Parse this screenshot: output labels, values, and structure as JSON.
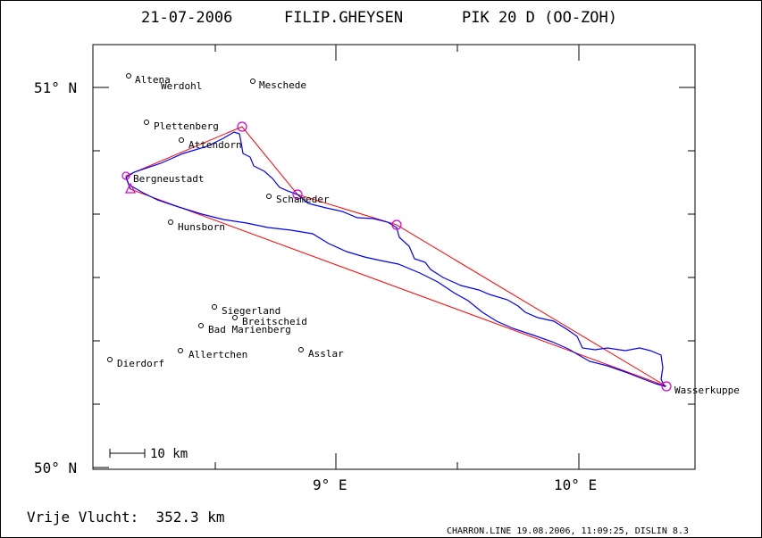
{
  "header": {
    "date": "21-07-2006",
    "pilot": "FILIP.GHEYSEN",
    "glider": "PIK 20 D (OO-ZOH)"
  },
  "axes": {
    "y_labels": [
      "51° N",
      "50° N"
    ],
    "x_labels": [
      "9° E",
      "10° E"
    ]
  },
  "scale_bar": {
    "label": "10 km"
  },
  "footer": {
    "distance": "Vrije Vlucht:  352.3 km",
    "software": "CHARRON.LINE 19.08.2006, 11:09:25, DISLIN 8.3"
  },
  "colors": {
    "track": "#0000ff",
    "task": "#ff0000",
    "turnpoint": "#d000d0",
    "text": "#000000"
  },
  "places": [
    {
      "name": "Altena"
    },
    {
      "name": "Werdohl"
    },
    {
      "name": "Meschede"
    },
    {
      "name": "Plettenberg"
    },
    {
      "name": "Attendorn"
    },
    {
      "name": "Bergneustadt"
    },
    {
      "name": "Schameder"
    },
    {
      "name": "Hunsborn"
    },
    {
      "name": "Siegerland"
    },
    {
      "name": "Breitscheid"
    },
    {
      "name": "Bad Marienberg"
    },
    {
      "name": "Allertchen"
    },
    {
      "name": "Asslar"
    },
    {
      "name": "Dierdorf"
    },
    {
      "name": "Wasserkuppe"
    }
  ]
}
